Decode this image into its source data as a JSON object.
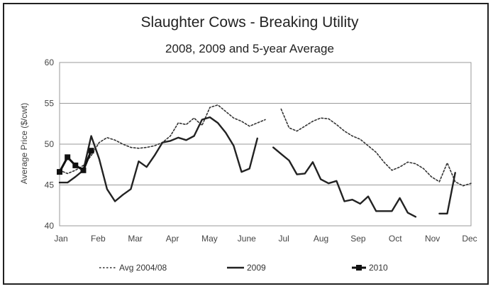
{
  "chart_data": {
    "type": "line",
    "title": "Slaughter Cows - Breaking Utility",
    "subtitle": "2008, 2009 and 5-year Average",
    "xlabel": "",
    "ylabel": "Average Price ($/cwt)",
    "ylim": [
      40,
      60
    ],
    "yticks": [
      40,
      45,
      50,
      55,
      60
    ],
    "grid": true,
    "legend": "bottom",
    "months": [
      "Jan",
      "Feb",
      "Mar",
      "Apr",
      "May",
      "June",
      "Jul",
      "Aug",
      "Sep",
      "Oct",
      "Nov",
      "Dec"
    ],
    "x_unit": "week of year",
    "xlim": [
      1,
      53
    ],
    "series": [
      {
        "name": "Avg 2004/08",
        "style": "dotted",
        "color": "#333333",
        "segments": [
          [
            [
              1,
              46.8
            ],
            [
              2,
              46.4
            ],
            [
              3,
              46.8
            ],
            [
              4,
              47.4
            ],
            [
              5,
              48.6
            ],
            [
              6,
              50.2
            ],
            [
              7,
              50.8
            ],
            [
              8,
              50.5
            ],
            [
              9,
              50.0
            ],
            [
              10,
              49.6
            ],
            [
              11,
              49.5
            ],
            [
              12,
              49.6
            ],
            [
              13,
              49.8
            ],
            [
              14,
              50.2
            ],
            [
              15,
              51.0
            ],
            [
              16,
              52.6
            ],
            [
              17,
              52.4
            ],
            [
              18,
              53.2
            ],
            [
              19,
              52.3
            ],
            [
              20,
              54.5
            ],
            [
              21,
              54.8
            ],
            [
              22,
              54.0
            ],
            [
              23,
              53.2
            ],
            [
              24,
              52.8
            ],
            [
              25,
              52.2
            ],
            [
              26,
              52.6
            ],
            [
              27,
              53.0
            ]
          ],
          [
            [
              29,
              54.3
            ],
            [
              30,
              52.0
            ],
            [
              31,
              51.6
            ],
            [
              32,
              52.2
            ],
            [
              33,
              52.8
            ],
            [
              34,
              53.2
            ],
            [
              35,
              53.1
            ],
            [
              36,
              52.4
            ],
            [
              37,
              51.6
            ],
            [
              38,
              51.0
            ],
            [
              39,
              50.6
            ],
            [
              40,
              49.8
            ],
            [
              41,
              49.0
            ],
            [
              42,
              47.8
            ],
            [
              43,
              46.8
            ],
            [
              44,
              47.2
            ],
            [
              45,
              47.8
            ],
            [
              46,
              47.6
            ],
            [
              47,
              47.0
            ],
            [
              48,
              46.0
            ],
            [
              49,
              45.4
            ],
            [
              50,
              47.7
            ],
            [
              51,
              45.4
            ],
            [
              52,
              44.9
            ],
            [
              53,
              45.2
            ]
          ]
        ]
      },
      {
        "name": "2009",
        "style": "solid",
        "color": "#222222",
        "segments": [
          [
            [
              1,
              45.3
            ],
            [
              2,
              45.3
            ],
            [
              3,
              46.0
            ],
            [
              4,
              46.8
            ],
            [
              5,
              51.0
            ],
            [
              6,
              48.2
            ],
            [
              7,
              44.5
            ],
            [
              8,
              43.0
            ],
            [
              9,
              43.8
            ],
            [
              10,
              44.5
            ],
            [
              11,
              47.9
            ],
            [
              12,
              47.2
            ],
            [
              13,
              48.6
            ],
            [
              14,
              50.2
            ],
            [
              15,
              50.4
            ],
            [
              16,
              50.8
            ],
            [
              17,
              50.5
            ],
            [
              18,
              51.0
            ],
            [
              19,
              53.0
            ],
            [
              20,
              53.3
            ],
            [
              21,
              52.6
            ],
            [
              22,
              51.4
            ],
            [
              23,
              49.8
            ],
            [
              24,
              46.6
            ],
            [
              25,
              47.0
            ],
            [
              26,
              50.7
            ]
          ],
          [
            [
              28,
              49.6
            ],
            [
              29,
              48.8
            ],
            [
              30,
              48.0
            ],
            [
              31,
              46.3
            ],
            [
              32,
              46.4
            ],
            [
              33,
              47.8
            ],
            [
              34,
              45.7
            ],
            [
              35,
              45.2
            ],
            [
              36,
              45.5
            ],
            [
              37,
              43.0
            ],
            [
              38,
              43.2
            ],
            [
              39,
              42.7
            ],
            [
              40,
              43.6
            ],
            [
              41,
              41.8
            ],
            [
              42,
              41.8
            ],
            [
              43,
              41.8
            ],
            [
              44,
              43.4
            ],
            [
              45,
              41.6
            ],
            [
              46,
              41.1
            ]
          ],
          [
            [
              49,
              41.5
            ],
            [
              50,
              41.5
            ],
            [
              51,
              46.5
            ]
          ]
        ]
      },
      {
        "name": "2010",
        "style": "solid-marker",
        "color": "#111111",
        "segments": [
          [
            [
              1,
              46.6
            ],
            [
              2,
              48.4
            ],
            [
              3,
              47.4
            ],
            [
              4,
              46.8
            ],
            [
              5,
              49.2
            ]
          ]
        ]
      }
    ]
  }
}
